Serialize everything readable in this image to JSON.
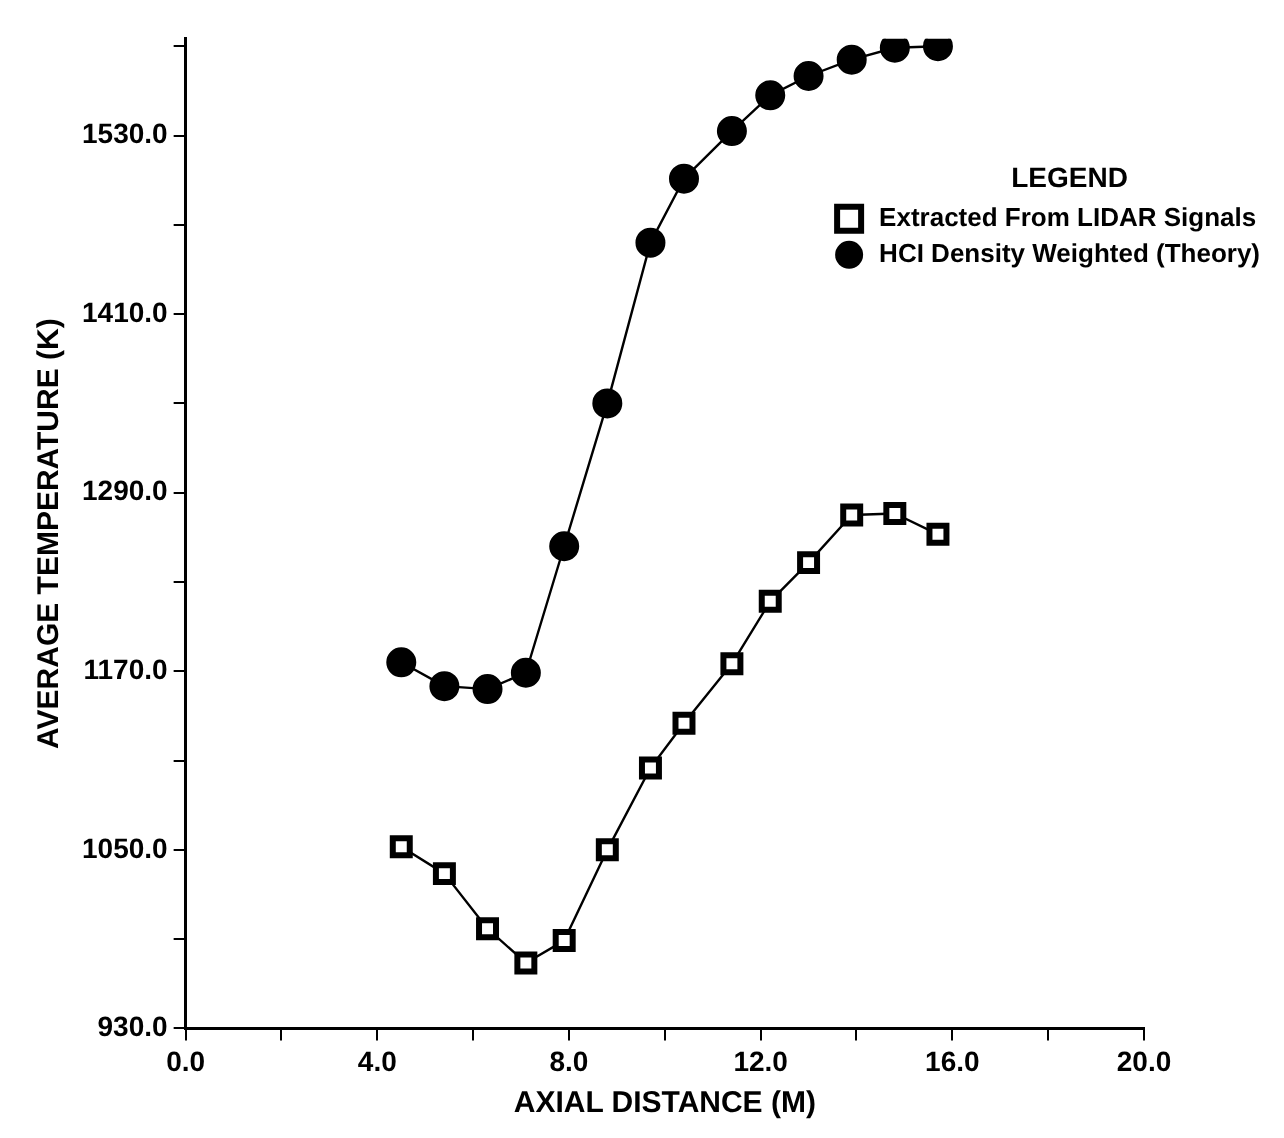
{
  "chart_data": {
    "type": "line",
    "xlabel": "AXIAL DISTANCE (M)",
    "ylabel": "AVERAGE TEMPERATURE (K)",
    "legend_title": "LEGEND",
    "x": [
      4.5,
      5.4,
      6.3,
      7.1,
      7.9,
      8.8,
      9.7,
      10.4,
      11.4,
      12.2,
      13.0,
      13.9,
      14.8,
      15.7
    ],
    "series": [
      {
        "name": "Extracted From LIDAR Signals",
        "color": "#000000",
        "marker": "square",
        "values": [
          1052,
          1034,
          997,
          974,
          989,
          1050,
          1105,
          1135,
          1175,
          1217,
          1243,
          1275,
          1276,
          1262
        ]
      },
      {
        "name": "HCI Density Weighted (Theory)",
        "color": "#000000",
        "marker": "circle",
        "values": [
          1176,
          1160,
          1158,
          1169,
          1254,
          1350,
          1458,
          1501,
          1533,
          1557,
          1570,
          1581,
          1589,
          1590
        ]
      }
    ],
    "xlim": [
      0,
      20
    ],
    "xticks": [
      {
        "value": 0,
        "label": "0.0"
      },
      {
        "value": 2,
        "label": null
      },
      {
        "value": 4,
        "label": "4.0"
      },
      {
        "value": 6,
        "label": null
      },
      {
        "value": 8,
        "label": "8.0"
      },
      {
        "value": 10,
        "label": null
      },
      {
        "value": 12,
        "label": "12.0"
      },
      {
        "value": 14,
        "label": null
      },
      {
        "value": 16,
        "label": "16.0"
      },
      {
        "value": 18,
        "label": null
      },
      {
        "value": 20,
        "label": "20.0"
      }
    ],
    "ylim": [
      930,
      1595
    ],
    "yticks": [
      {
        "value": 930,
        "label": "930.0"
      },
      {
        "value": 990,
        "label": null
      },
      {
        "value": 1050,
        "label": "1050.0"
      },
      {
        "value": 1110,
        "label": null
      },
      {
        "value": 1170,
        "label": "1170.0"
      },
      {
        "value": 1230,
        "label": null
      },
      {
        "value": 1290,
        "label": "1290.0"
      },
      {
        "value": 1350,
        "label": null
      },
      {
        "value": 1410,
        "label": "1410.0"
      },
      {
        "value": 1470,
        "label": null
      },
      {
        "value": 1530,
        "label": "1530.0"
      },
      {
        "value": 1590,
        "label": null
      }
    ],
    "grid": false,
    "legend": "top right",
    "line_style": "solid"
  }
}
